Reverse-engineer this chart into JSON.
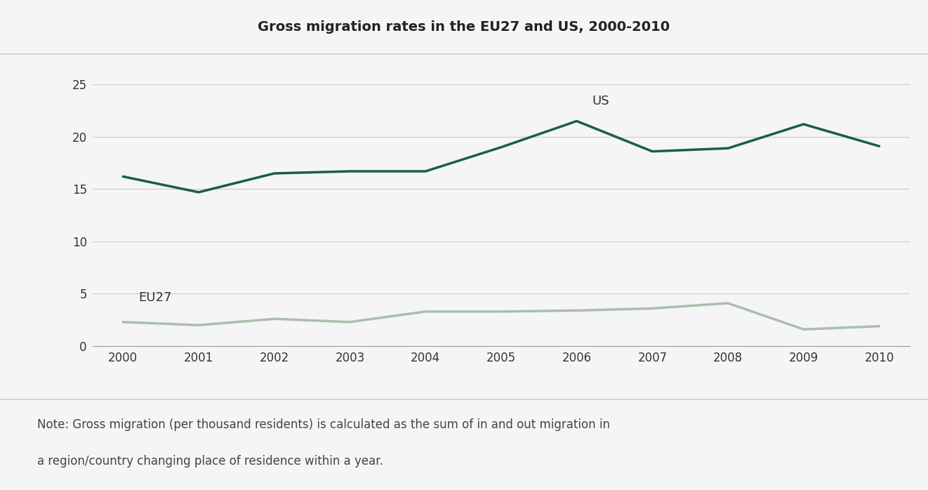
{
  "title": "Gross migration rates in the EU27 and US, 2000-2010",
  "years": [
    2000,
    2001,
    2002,
    2003,
    2004,
    2005,
    2006,
    2007,
    2008,
    2009,
    2010
  ],
  "us_values": [
    16.2,
    14.7,
    16.5,
    16.7,
    16.7,
    19.0,
    21.5,
    18.6,
    18.9,
    21.2,
    19.1
  ],
  "eu_values": [
    2.3,
    2.0,
    2.6,
    2.3,
    3.3,
    3.3,
    3.4,
    3.6,
    4.1,
    1.6,
    1.9
  ],
  "us_color": "#1a5e45",
  "eu_color": "#aabfaa",
  "us_label": "US",
  "eu_label": "EU27",
  "ylim": [
    0,
    25
  ],
  "yticks": [
    0,
    5,
    10,
    15,
    20,
    25
  ],
  "xlim": [
    1999.6,
    2010.4
  ],
  "header_bg_color": "#ebebeb",
  "chart_bg_color": "#f5f5f5",
  "plot_area_bg_color": "#f5f5f5",
  "note_bg_color": "#ffffff",
  "title_fontsize": 14,
  "note_text_line1": "Note: Gross migration (per thousand residents) is calculated as the sum of in and out migration in",
  "note_text_line2": "a region/country changing place of residence within a year.",
  "note_fontsize": 12,
  "grid_color": "#cccccc",
  "linewidth": 2.5,
  "separator_color": "#cccccc",
  "tick_label_color": "#333333",
  "tick_label_fontsize": 12
}
